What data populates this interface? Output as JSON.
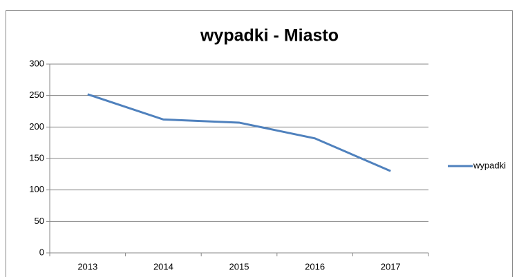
{
  "chart_data": {
    "type": "line",
    "title": "wypadki - Miasto",
    "categories": [
      "2013",
      "2014",
      "2015",
      "2016",
      "2017"
    ],
    "series": [
      {
        "name": "wypadki",
        "color": "#4f81bd",
        "values": [
          252,
          212,
          207,
          182,
          130
        ]
      }
    ],
    "ylim": [
      0,
      300
    ],
    "yticks": [
      0,
      50,
      100,
      150,
      200,
      250,
      300
    ],
    "grid": true,
    "legend": "right"
  }
}
